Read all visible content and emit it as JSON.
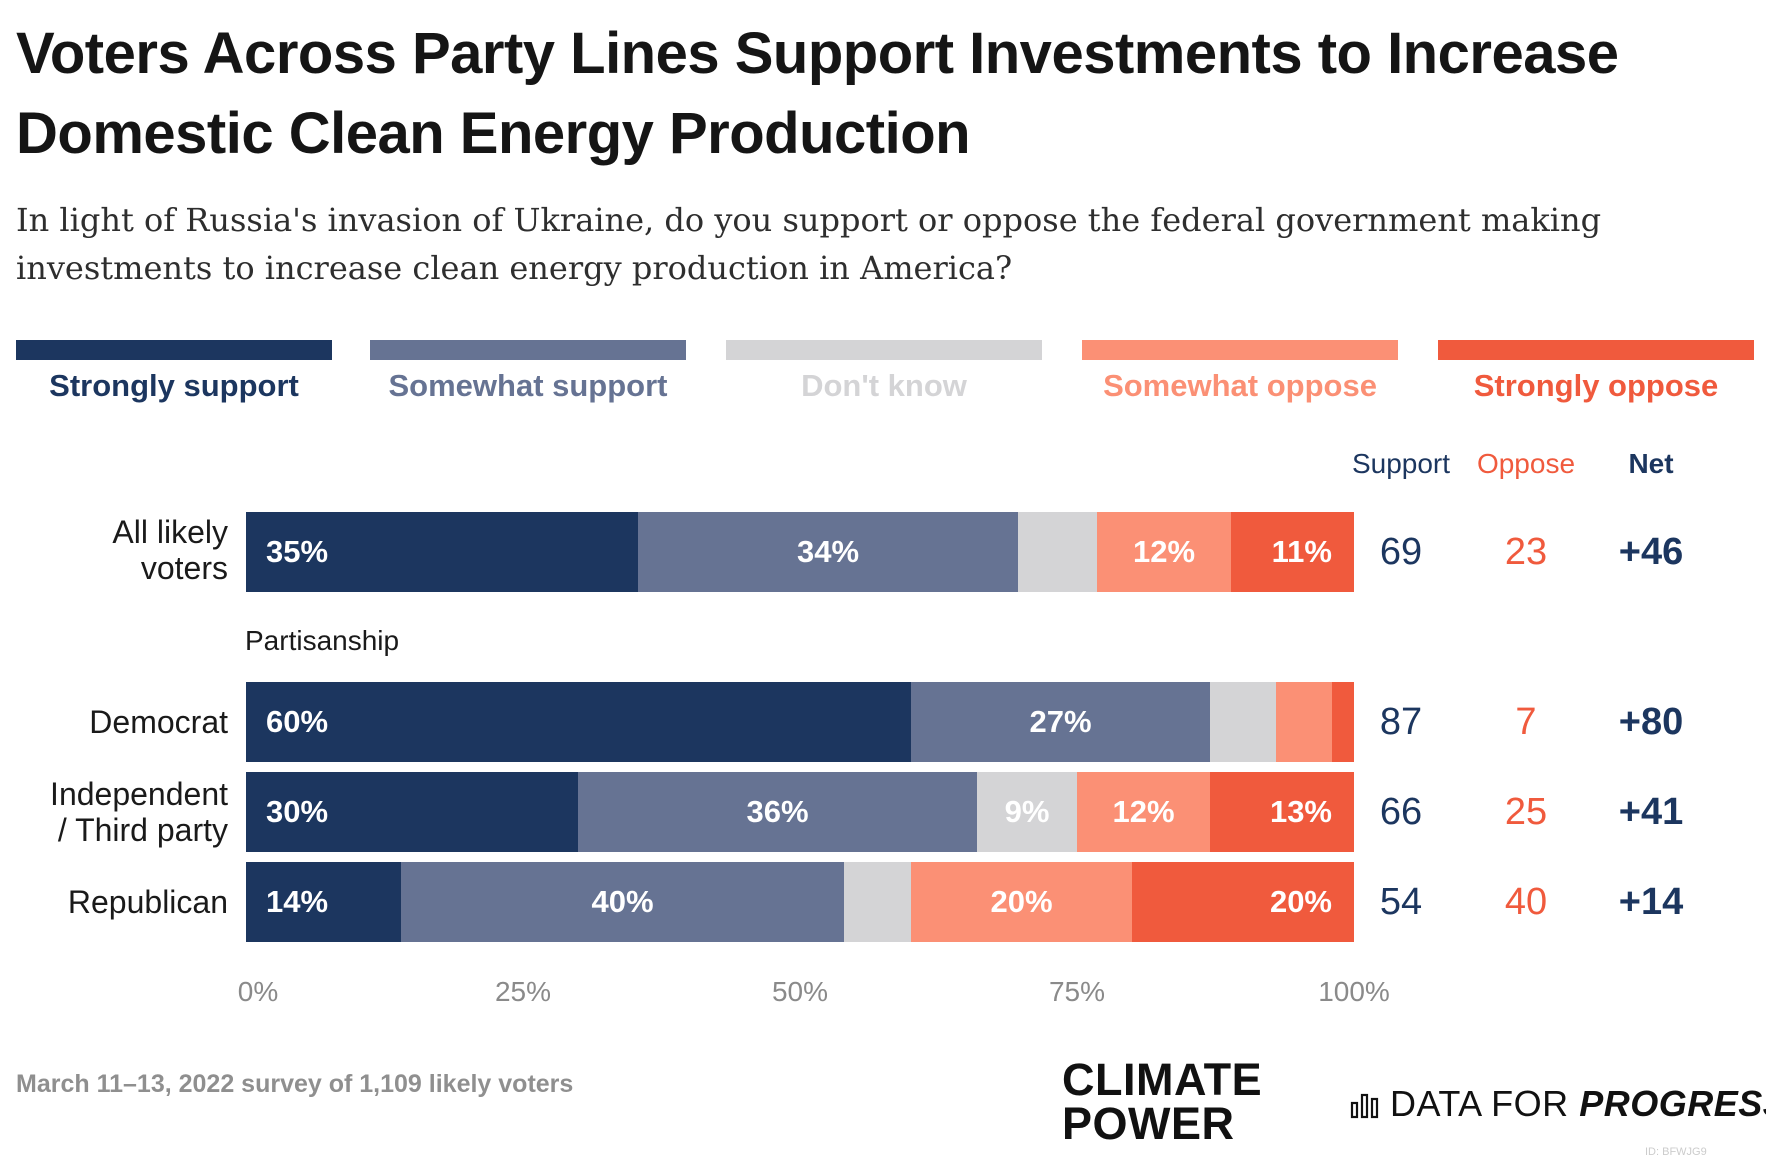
{
  "chart_data": {
    "type": "bar",
    "orientation": "horizontal",
    "stacked": true,
    "title": "Voters Across Party Lines Support Investments to Increase Domestic Clean Energy Production",
    "subtitle": "In light of Russia's invasion of Ukraine, do you support or oppose the federal government making investments to increase clean energy production in America?",
    "series": [
      {
        "name": "Strongly support",
        "color": "#1c365f",
        "values": [
          35,
          60,
          30,
          14
        ]
      },
      {
        "name": "Somewhat support",
        "color": "#667393",
        "values": [
          34,
          27,
          36,
          40
        ]
      },
      {
        "name": "Don't know",
        "color": "#d4d4d6",
        "values": [
          7,
          6,
          9,
          6
        ]
      },
      {
        "name": "Somewhat oppose",
        "color": "#fb9075",
        "values": [
          12,
          5,
          12,
          20
        ]
      },
      {
        "name": "Strongly oppose",
        "color": "#f05a3d",
        "values": [
          11,
          2,
          13,
          20
        ]
      }
    ],
    "categories": [
      "All likely voters",
      "Democrat",
      "Independent / Third party",
      "Republican"
    ],
    "rows": [
      {
        "label": "All likely voters",
        "support": "69",
        "oppose": "23",
        "net": "+46",
        "seg_labels": [
          "35%",
          "34%",
          "",
          "12%",
          "11%"
        ]
      },
      {
        "label": "Democrat",
        "support": "87",
        "oppose": "7",
        "net": "+80",
        "seg_labels": [
          "60%",
          "27%",
          "",
          "",
          ""
        ]
      },
      {
        "label": "Independent / Third party",
        "support": "66",
        "oppose": "25",
        "net": "+41",
        "seg_labels": [
          "30%",
          "36%",
          "9%",
          "12%",
          "13%"
        ]
      },
      {
        "label": "Republican",
        "support": "54",
        "oppose": "40",
        "net": "+14",
        "seg_labels": [
          "14%",
          "40%",
          "",
          "20%",
          "20%"
        ]
      }
    ],
    "section_label": "Partisanship",
    "xlim": [
      0,
      100
    ],
    "x_ticks": [
      "0%",
      "25%",
      "50%",
      "75%",
      "100%"
    ],
    "columns": {
      "support": "Support",
      "oppose": "Oppose",
      "net": "Net"
    },
    "legend": "top"
  },
  "labels": {
    "row_all_line1": "All likely",
    "row_all_line2": "voters",
    "row_ind_line1": "Independent",
    "row_ind_line2": "/ Third party"
  },
  "colors": {
    "navy": "#1c365f",
    "oppose": "#f05a3d",
    "tick": "#8a8a8a"
  },
  "footer": {
    "note": "March 11–13, 2022 survey of 1,109 likely voters",
    "logo_cp_line1": "CLIMATE",
    "logo_cp_line2": "POWER",
    "logo_dfp_plain": "DATA FOR ",
    "logo_dfp_bold": "PROGRESS",
    "chart_id": "ID: BFWJG9"
  }
}
